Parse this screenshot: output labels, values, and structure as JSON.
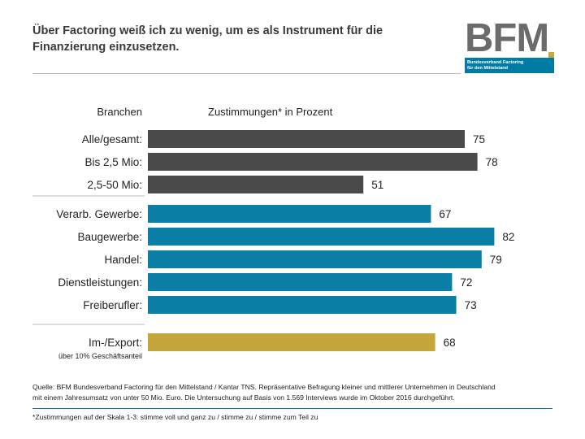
{
  "header": {
    "title_lines": [
      "Über Factoring weiß ich zu wenig, um es als Instrument für die",
      "Finanzierung einzusetzen."
    ]
  },
  "logo": {
    "letters": "BFM",
    "line1": "Bundesverband Factoring",
    "line2": "für den Mittelstand"
  },
  "chart_data": {
    "type": "bar",
    "orientation": "horizontal",
    "category_header": "Branchen",
    "value_header": "Zustimmungen* in Prozent",
    "xlim": [
      0,
      100
    ],
    "grid": false,
    "groups": [
      {
        "color": "#4a4a4a",
        "categories": [
          "Alle/gesamt:",
          "Bis 2,5 Mio:",
          "2,5-50 Mio:"
        ],
        "values": [
          75,
          78,
          51
        ]
      },
      {
        "color": "#0b7fa6",
        "categories": [
          "Verarb. Gewerbe:",
          "Baugewerbe:",
          "Handel:",
          "Dienstleistungen:",
          "Freiberufler:"
        ],
        "values": [
          67,
          82,
          79,
          72,
          73
        ]
      },
      {
        "color": "#c4a63a",
        "categories": [
          "Im-/Export:"
        ],
        "sublabels": [
          "über 10% Geschäftsanteil"
        ],
        "values": [
          68
        ]
      }
    ]
  },
  "footer": {
    "source_lines": [
      "Quelle: BFM Bundesverband Factoring für den Mittelstand / Kantar TNS. Repräsentative Befragung kleiner und mittlerer Unternehmen in Deutschland",
      "mit einem Jahresumsatz von unter 50 Mio. Euro. Die Untersuchung auf Basis von 1.569 Interviews wurde im Oktober 2016 durchgeführt."
    ],
    "footnote": "*Zustimmungen auf der Skala 1-3: stimme voll und ganz zu / stimme zu / stimme zum Teil zu"
  }
}
